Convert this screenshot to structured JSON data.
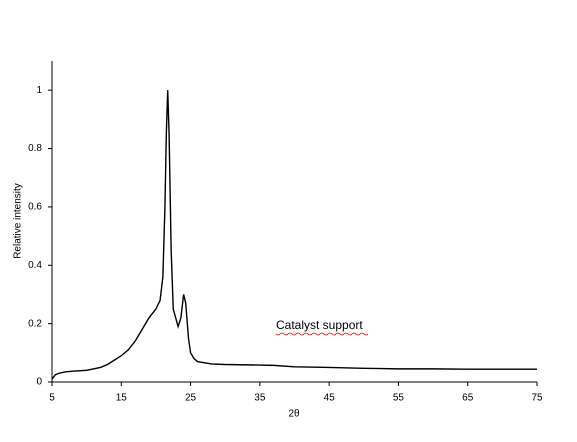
{
  "chart_data": {
    "type": "line",
    "x_label": "2θ",
    "y_label": "Relative intensity",
    "annotation": "Catalyst support",
    "series": [
      {
        "name": "Catalyst support",
        "color": "#000000",
        "x": [
          5,
          5.5,
          6,
          7,
          8,
          10,
          12,
          13,
          14,
          15,
          16,
          17,
          18,
          19,
          20,
          20.6,
          21,
          21.3,
          21.5,
          21.7,
          21.9,
          22.2,
          22.5,
          23.2,
          23.6,
          24.0,
          24.3,
          24.7,
          25,
          25.5,
          26,
          28,
          30,
          35,
          37,
          40,
          45,
          50,
          55,
          60,
          65,
          70,
          75
        ],
        "values": [
          0.01,
          0.025,
          0.03,
          0.035,
          0.037,
          0.04,
          0.05,
          0.06,
          0.075,
          0.09,
          0.11,
          0.14,
          0.18,
          0.22,
          0.25,
          0.28,
          0.36,
          0.6,
          0.85,
          1.0,
          0.85,
          0.45,
          0.25,
          0.19,
          0.22,
          0.3,
          0.27,
          0.15,
          0.1,
          0.08,
          0.07,
          0.062,
          0.06,
          0.058,
          0.057,
          0.052,
          0.05,
          0.047,
          0.045,
          0.045,
          0.044,
          0.044,
          0.044
        ]
      }
    ],
    "xlim": [
      5,
      75
    ],
    "xticks": [
      5,
      15,
      25,
      35,
      45,
      55,
      65,
      75
    ],
    "ylim": [
      0,
      1.1
    ],
    "yticks": [
      0,
      0.2,
      0.4,
      0.6,
      0.8,
      1
    ],
    "grid": false
  }
}
